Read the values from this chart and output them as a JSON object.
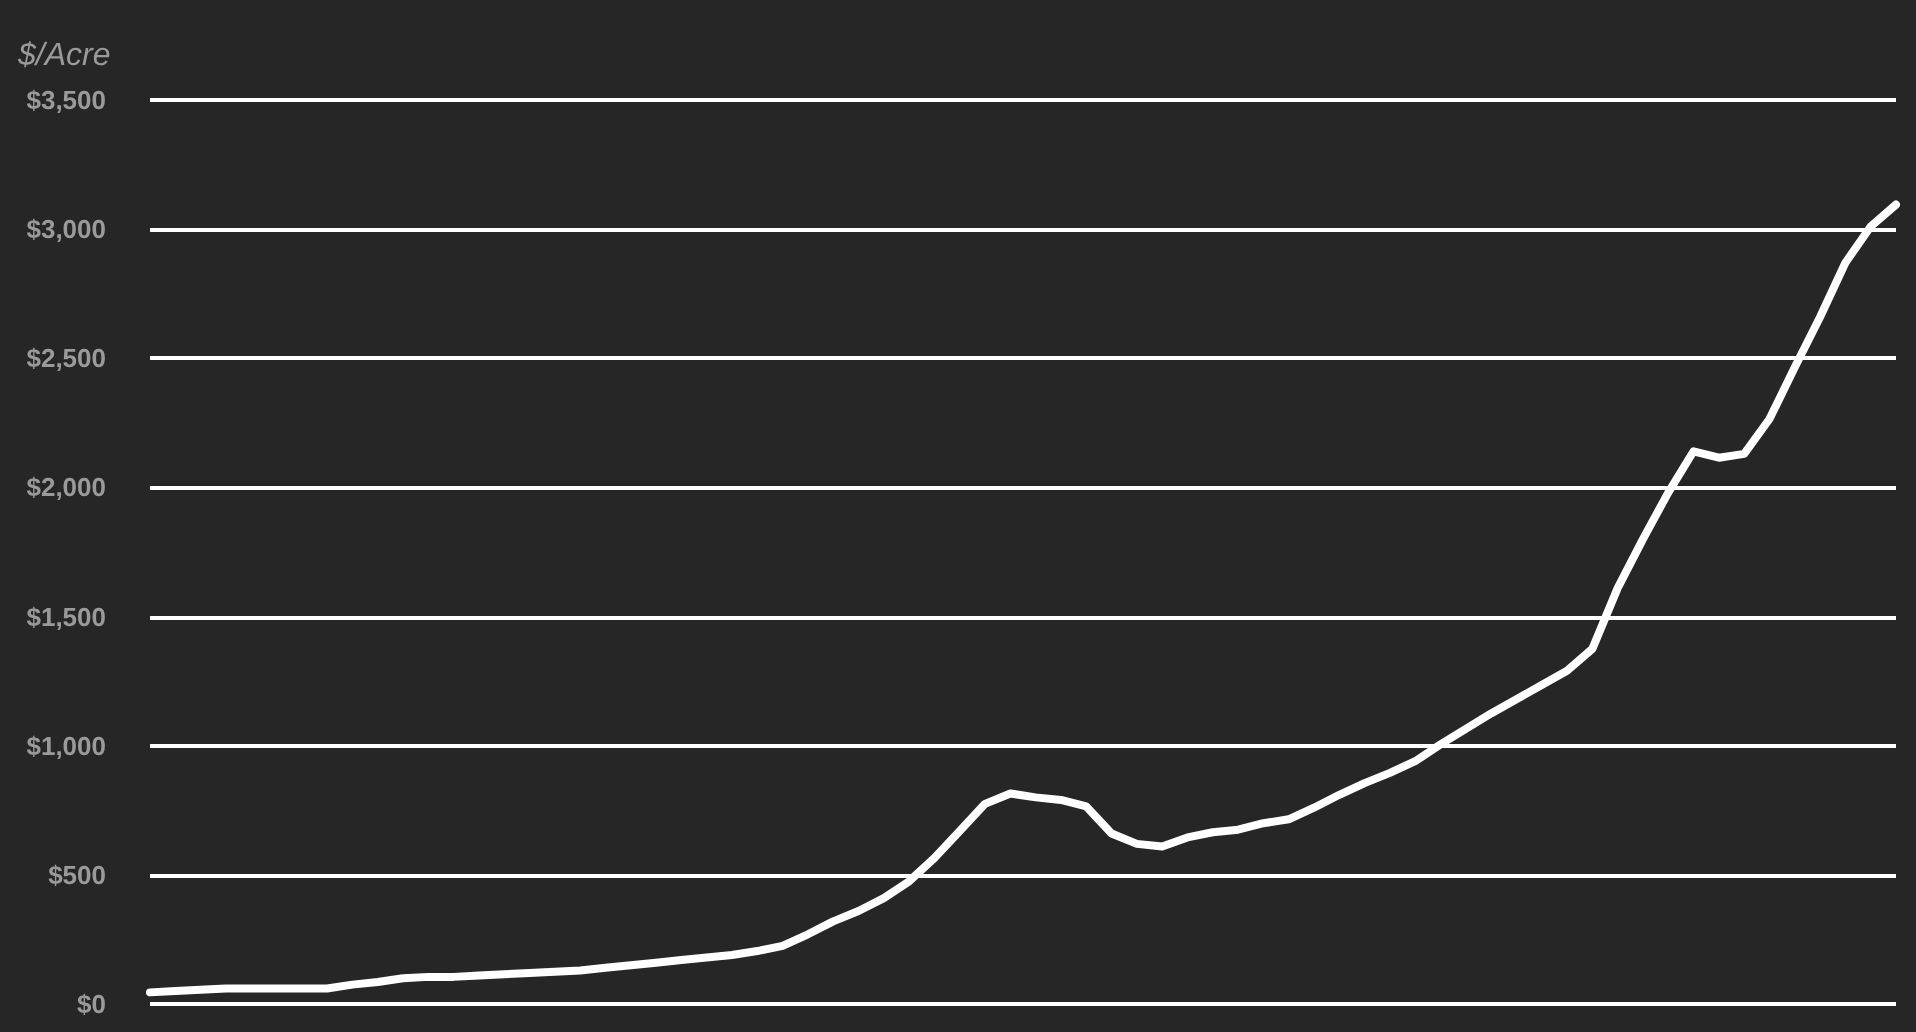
{
  "chart_data": {
    "type": "line",
    "ylabel": "$/Acre",
    "categories": [
      null,
      null,
      null,
      null,
      null,
      null,
      null,
      null,
      null,
      null,
      null,
      null,
      null,
      null,
      null,
      null,
      null,
      null,
      null,
      null,
      null,
      null,
      null,
      null,
      null,
      null,
      null,
      null,
      null,
      null,
      null,
      null,
      null,
      null,
      null,
      null,
      null,
      null,
      null,
      null,
      null,
      null,
      null,
      null,
      null,
      null,
      null,
      null,
      null,
      null,
      null,
      null,
      null,
      null,
      null,
      null,
      null,
      null,
      null,
      null,
      null,
      null,
      null,
      null,
      null,
      null,
      null,
      null,
      null,
      null
    ],
    "series": [
      {
        "color": "#ffffff",
        "values": [
          45,
          50,
          55,
          60,
          60,
          60,
          60,
          60,
          75,
          85,
          100,
          105,
          105,
          110,
          115,
          120,
          125,
          130,
          140,
          150,
          160,
          170,
          180,
          190,
          205,
          225,
          270,
          320,
          360,
          410,
          475,
          565,
          670,
          775,
          815,
          800,
          790,
          765,
          660,
          620,
          610,
          645,
          665,
          675,
          700,
          715,
          760,
          810,
          855,
          895,
          940,
          1005,
          1065,
          1125,
          1180,
          1235,
          1290,
          1375,
          1610,
          1800,
          1980,
          2140,
          2115,
          2130,
          2265,
          2465,
          2660,
          2870,
          3010,
          3095
        ]
      }
    ],
    "ylim": [
      0,
      3500
    ],
    "yticks": [
      {
        "value": 0,
        "label": "$0"
      },
      {
        "value": 500,
        "label": "$500"
      },
      {
        "value": 1000,
        "label": "$1,000"
      },
      {
        "value": 1500,
        "label": "$1,500"
      },
      {
        "value": 2000,
        "label": "$2,000"
      },
      {
        "value": 2500,
        "label": "$2,500"
      },
      {
        "value": 3000,
        "label": "$3,000"
      },
      {
        "value": 3500,
        "label": "$3,500"
      }
    ],
    "grid": "y",
    "marker": "none",
    "line_style": "solid",
    "tick_labels": "y"
  }
}
